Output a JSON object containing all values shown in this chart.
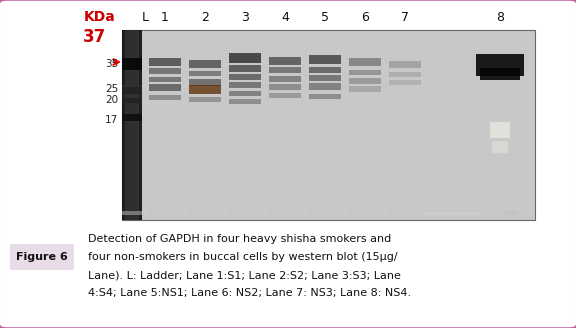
{
  "title_label": "KDa",
  "title_label_color": "#cc0000",
  "kda_37_label": "37",
  "kda_37_color": "#cc0000",
  "lane_labels": [
    "L",
    "1",
    "2",
    "3",
    "4",
    "5",
    "6",
    "7",
    "8"
  ],
  "mw_marker_labels": [
    "35",
    "25",
    "20",
    "17"
  ],
  "figure_label": "Figure 6",
  "figure_label_bg": "#e8dce8",
  "caption_line1": "Detection of GAPDH in four heavy shisha smokers and",
  "caption_line2": "four non-smokers in buccal cells by western blot (15μg/",
  "caption_line3": "Lane). L: Ladder; Lane 1:S1; Lane 2:S2; Lane 3:S3; Lane",
  "caption_line4": "4:S4; Lane 5:NS1; Lane 6: NS2; Lane 7: NS3; Lane 8: NS4.",
  "outer_border_color": "#c060a0",
  "background_color": "#ffffff"
}
